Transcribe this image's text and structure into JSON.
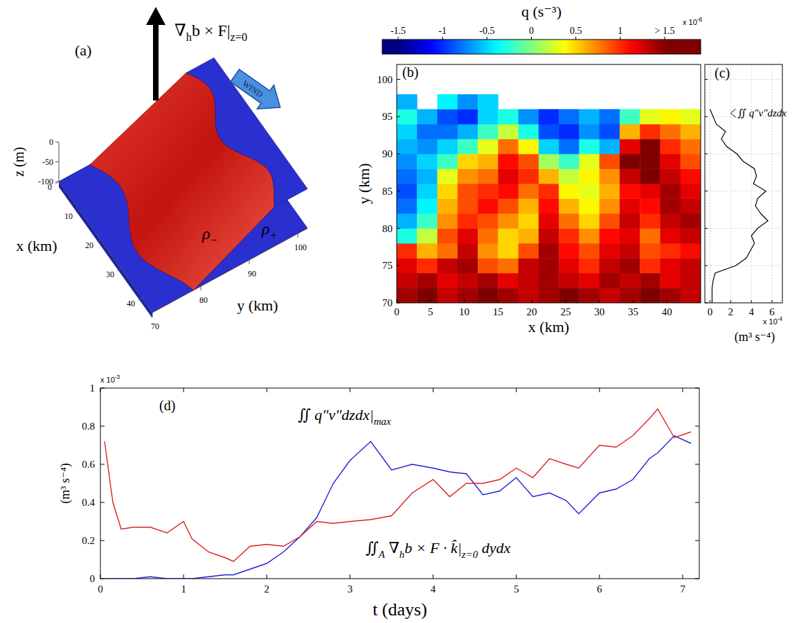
{
  "chart_data": [
    {
      "type": "surface3d",
      "panel": "(a)",
      "xlabel": "x (km)",
      "ylabel": "y (km)",
      "zlabel": "z (m)",
      "xlim": [
        0,
        45
      ],
      "ylim": [
        70,
        102
      ],
      "zlim": [
        -100,
        0
      ],
      "xticks": [
        0,
        10,
        20,
        30,
        40
      ],
      "yticks": [
        70,
        80,
        90,
        100
      ],
      "zticks": [
        0,
        -50,
        -100
      ],
      "annotations": [
        "∇hb × F|z=0",
        "WIND",
        "ρ−",
        "ρ+"
      ]
    },
    {
      "type": "heatmap",
      "panel": "(b)",
      "xlabel": "x (km)",
      "ylabel": "y (km)",
      "xlim": [
        0,
        45
      ],
      "ylim": [
        70,
        102
      ],
      "xticks": [
        0,
        5,
        10,
        15,
        20,
        25,
        30,
        35,
        40
      ],
      "yticks": [
        70,
        75,
        80,
        85,
        90,
        95,
        100
      ],
      "x_edges": [
        0,
        3,
        6,
        9,
        12,
        15,
        18,
        21,
        24,
        27,
        30,
        33,
        36,
        39,
        42,
        45
      ],
      "y_edges": [
        70,
        72,
        74,
        76,
        78,
        80,
        82,
        84,
        86,
        88,
        90,
        92,
        94,
        96,
        98
      ],
      "cells": [
        [
          1.4,
          1.5,
          1.3,
          1.4,
          1.5,
          1.4,
          1.3,
          1.4,
          1.5,
          1.4,
          1.3,
          1.4,
          1.5,
          1.4,
          1.3
        ],
        [
          1.3,
          1.4,
          1.2,
          1.3,
          1.4,
          1.2,
          1.3,
          1.4,
          1.3,
          1.2,
          1.4,
          1.3,
          1.4,
          1.2,
          1.3
        ],
        [
          1.2,
          1.0,
          1.3,
          1.4,
          0.9,
          0.8,
          1.3,
          1.4,
          1.2,
          1.0,
          1.3,
          1.4,
          1.0,
          1.2,
          1.3
        ],
        [
          1.0,
          0.6,
          0.8,
          1.3,
          0.7,
          0.5,
          0.9,
          1.4,
          1.1,
          0.9,
          1.2,
          1.3,
          0.9,
          1.0,
          1.1
        ],
        [
          -0.3,
          0.2,
          0.9,
          1.2,
          0.8,
          0.5,
          0.6,
          1.3,
          1.0,
          0.7,
          1.1,
          1.2,
          0.8,
          1.2,
          1.3
        ],
        [
          -0.6,
          -0.2,
          0.7,
          1.0,
          0.9,
          0.7,
          0.5,
          1.2,
          0.8,
          0.5,
          0.9,
          1.3,
          1.0,
          1.3,
          1.4
        ],
        [
          -0.8,
          -0.4,
          0.6,
          0.9,
          1.1,
          0.9,
          0.6,
          1.1,
          0.6,
          0.4,
          0.7,
          1.2,
          1.1,
          1.4,
          1.3
        ],
        [
          -0.9,
          -0.5,
          0.5,
          0.9,
          1.0,
          1.1,
          0.8,
          1.0,
          0.4,
          0.3,
          0.6,
          1.1,
          1.2,
          1.4,
          1.2
        ],
        [
          -0.8,
          -0.6,
          0.3,
          0.7,
          0.8,
          1.2,
          1.0,
          0.6,
          0.2,
          0.4,
          0.7,
          1.3,
          1.5,
          1.3,
          1.1
        ],
        [
          -0.7,
          -0.5,
          -0.2,
          0.5,
          0.6,
          1.1,
          0.9,
          0.1,
          -0.2,
          0.3,
          0.9,
          1.5,
          1.8,
          1.2,
          0.9
        ],
        [
          -0.6,
          -0.7,
          -0.5,
          -0.2,
          0.3,
          0.8,
          0.4,
          -0.5,
          -0.8,
          -0.3,
          -0.6,
          1.2,
          1.6,
          1.0,
          0.8
        ],
        [
          -0.5,
          -0.8,
          -0.8,
          -0.6,
          -0.2,
          0.2,
          -0.3,
          -0.9,
          -1.0,
          -0.7,
          -0.9,
          0.6,
          1.0,
          0.8,
          0.6
        ],
        [
          -0.3,
          -0.6,
          -0.9,
          -1.0,
          -0.5,
          -0.3,
          -0.7,
          -1.0,
          -0.8,
          -0.6,
          -0.8,
          -0.2,
          0.3,
          0.4,
          0.3
        ],
        [
          -0.6,
          null,
          -0.4,
          -0.7,
          -0.5,
          null,
          null,
          null,
          null,
          null,
          null,
          null,
          null,
          null,
          null
        ]
      ],
      "colorbar": {
        "label": "q (s⁻³)",
        "clim": [
          -1.5,
          1.5
        ],
        "ticks": [
          -1.5,
          -1,
          -0.5,
          0,
          0.5,
          1,
          {
            "value": 1.5,
            "label": "> 1.5"
          }
        ],
        "multiplier": {
          "base": "x 10",
          "exponent": "-8"
        }
      }
    },
    {
      "type": "line",
      "panel": "(c)",
      "orientation": "horizontal",
      "grid": true,
      "tick_labels": "x",
      "xlabel": "(m³ s⁻⁴)",
      "xlim": [
        -0.5,
        7
      ],
      "ylim": [
        70,
        102
      ],
      "xticks": [
        0,
        2,
        4,
        6
      ],
      "yticks": [
        70,
        75,
        80,
        85,
        90,
        95,
        100
      ],
      "multiplier": {
        "base": "x 10",
        "exponent": "-4"
      },
      "y": [
        70,
        71,
        72,
        73,
        74,
        75,
        76,
        77,
        78,
        79,
        80,
        81,
        82,
        83,
        84,
        85,
        86,
        87,
        88,
        89,
        90,
        91,
        92,
        93,
        94,
        95,
        96
      ],
      "series": [
        {
          "name": "∬ q″v″dzdx",
          "color": "#000000",
          "values": [
            0.2,
            0.2,
            0.2,
            0.3,
            0.5,
            2.5,
            3.5,
            3.9,
            4.3,
            4.0,
            4.6,
            5.6,
            4.9,
            4.4,
            4.6,
            5.4,
            4.2,
            4.5,
            4.3,
            3.2,
            2.6,
            1.6,
            1.1,
            1.5,
            0.6,
            0.3,
            0
          ]
        }
      ]
    },
    {
      "type": "line",
      "panel": "(d)",
      "xlabel": "t (days)",
      "ylabel": "(m³ s⁻⁴)",
      "xlim": [
        0,
        7.2
      ],
      "ylim": [
        0,
        1
      ],
      "xticks": [
        0,
        1,
        2,
        3,
        4,
        5,
        6,
        7
      ],
      "yticks": [
        0,
        0.2,
        0.4,
        0.6,
        0.8,
        1
      ],
      "multiplier": {
        "base": "x 10",
        "exponent": "-3"
      },
      "x": [
        0.05,
        0.15,
        0.25,
        0.4,
        0.6,
        0.8,
        1.0,
        1.1,
        1.3,
        1.5,
        1.6,
        1.8,
        2.0,
        2.2,
        2.4,
        2.6,
        2.8,
        3.0,
        3.25,
        3.5,
        3.75,
        4.0,
        4.2,
        4.4,
        4.6,
        4.8,
        5.0,
        5.2,
        5.4,
        5.6,
        5.75,
        6.0,
        6.2,
        6.4,
        6.6,
        6.7,
        6.9,
        7.1
      ],
      "series": [
        {
          "name": "∬ q″v″dzdx|max",
          "color": "#1f1fd8",
          "values": [
            0,
            0,
            0,
            0,
            0.01,
            0,
            0,
            0,
            0.01,
            0.02,
            0.02,
            0.05,
            0.08,
            0.14,
            0.22,
            0.32,
            0.5,
            0.62,
            0.72,
            0.57,
            0.6,
            0.58,
            0.56,
            0.55,
            0.44,
            0.46,
            0.53,
            0.43,
            0.45,
            0.41,
            0.34,
            0.45,
            0.47,
            0.52,
            0.63,
            0.66,
            0.75,
            0.71
          ]
        },
        {
          "name": "∬A ∇hb × F · k̂|z=0 dydx",
          "color": "#e01f1f",
          "values": [
            0.72,
            0.4,
            0.26,
            0.27,
            0.27,
            0.24,
            0.3,
            0.21,
            0.14,
            0.11,
            0.09,
            0.17,
            0.18,
            0.17,
            0.22,
            0.3,
            0.29,
            0.3,
            0.31,
            0.33,
            0.45,
            0.52,
            0.43,
            0.5,
            0.5,
            0.52,
            0.58,
            0.53,
            0.63,
            0.6,
            0.58,
            0.7,
            0.69,
            0.75,
            0.84,
            0.89,
            0.74,
            0.77
          ]
        }
      ]
    }
  ]
}
